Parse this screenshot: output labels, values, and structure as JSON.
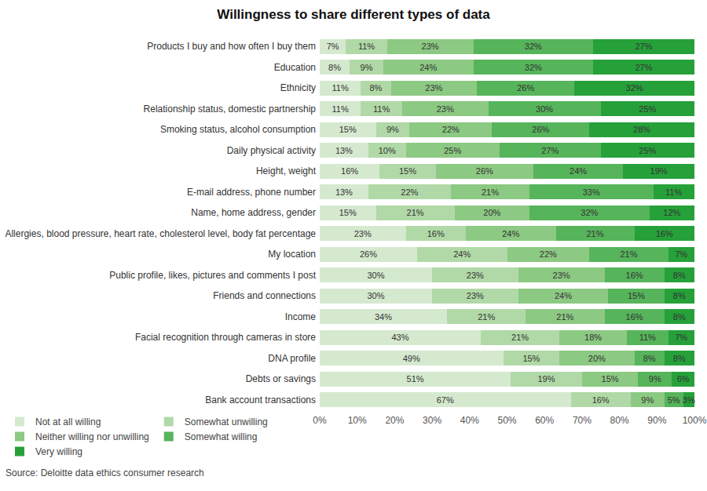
{
  "chart_data": {
    "type": "bar",
    "title": "Willingness to share different types of data",
    "orientation": "horizontal",
    "stacked": true,
    "data_labels": true,
    "grid": false,
    "legend": "bottom-left",
    "annotations": [
      "Source: Deloitte data ethics consumer research"
    ],
    "categories": [
      "Products I buy and how often I buy them",
      "Education",
      "Ethnicity",
      "Relationship status, domestic partnership",
      "Smoking status, alcohol consumption",
      "Daily physical activity",
      "Height, weight",
      "E-mail address, phone number",
      "Name, home address, gender",
      "Allergies, blood pressure, heart rate, cholesterol level, body fat percentage",
      "My location",
      "Public profile, likes, pictures and comments I post",
      "Friends and connections",
      "Income",
      "Facial recognition through cameras in store",
      "DNA profile",
      "Debts or savings",
      "Bank account transactions"
    ],
    "series": [
      {
        "name": "Not at all willing",
        "color": "#d5e9cf",
        "values": [
          7,
          8,
          11,
          11,
          15,
          13,
          16,
          13,
          15,
          23,
          26,
          30,
          30,
          34,
          43,
          49,
          51,
          67
        ],
        "value_labels": [
          "7%",
          "8%",
          "11%",
          "11%",
          "15%",
          "13%",
          "16%",
          "13%",
          "15%",
          "23%",
          "26%",
          "30%",
          "30%",
          "34%",
          "43%",
          "49%",
          "51%",
          "67%"
        ]
      },
      {
        "name": "Somewhat unwilling",
        "color": "#b1d9a7",
        "values": [
          11,
          9,
          8,
          11,
          9,
          10,
          15,
          22,
          21,
          16,
          24,
          23,
          23,
          21,
          21,
          15,
          19,
          16
        ],
        "value_labels": [
          "11%",
          "9%",
          "8%",
          "11%",
          "9%",
          "10%",
          "15%",
          "22%",
          "21%",
          "16%",
          "24%",
          "23%",
          "23%",
          "21%",
          "21%",
          "15%",
          "19%",
          "16%"
        ]
      },
      {
        "name": "Neither willing nor unwilling",
        "color": "#8cc982",
        "values": [
          23,
          24,
          23,
          23,
          22,
          25,
          26,
          21,
          20,
          24,
          22,
          23,
          24,
          21,
          18,
          20,
          15,
          9
        ],
        "value_labels": [
          "23%",
          "24%",
          "23%",
          "23%",
          "22%",
          "25%",
          "26%",
          "21%",
          "20%",
          "24%",
          "22%",
          "23%",
          "24%",
          "21%",
          "18%",
          "20%",
          "15%",
          "9%"
        ]
      },
      {
        "name": "Somewhat willing",
        "color": "#56b45b",
        "values": [
          32,
          32,
          26,
          30,
          26,
          27,
          24,
          33,
          32,
          21,
          21,
          16,
          15,
          16,
          11,
          8,
          9,
          5
        ],
        "value_labels": [
          "32%",
          "32%",
          "26%",
          "30%",
          "26%",
          "27%",
          "24%",
          "33%",
          "32%",
          "21%",
          "21%",
          "16%",
          "15%",
          "16%",
          "11%",
          "8%",
          "9%",
          "5%"
        ]
      },
      {
        "name": "Very willing",
        "color": "#26a13a",
        "values": [
          27,
          27,
          32,
          25,
          28,
          25,
          19,
          11,
          12,
          16,
          7,
          8,
          8,
          8,
          7,
          8,
          6,
          3
        ],
        "value_labels": [
          "27%",
          "27%",
          "32%",
          "25%",
          "28%",
          "25%",
          "19%",
          "11%",
          "12%",
          "16%",
          "7%",
          "8%",
          "8%",
          "8%",
          "7%",
          "8%",
          "6%",
          "3%"
        ]
      }
    ],
    "xlim": [
      0,
      100
    ],
    "xticks": [
      {
        "value": 0,
        "label": "0%"
      },
      {
        "value": 10,
        "label": "10%"
      },
      {
        "value": 20,
        "label": "20%"
      },
      {
        "value": 30,
        "label": "30%"
      },
      {
        "value": 40,
        "label": "40%"
      },
      {
        "value": 50,
        "label": "50%"
      },
      {
        "value": 60,
        "label": "60%"
      },
      {
        "value": 70,
        "label": "70%"
      },
      {
        "value": 80,
        "label": "80%"
      },
      {
        "value": 90,
        "label": "90%"
      },
      {
        "value": 100,
        "label": "100%"
      }
    ]
  }
}
